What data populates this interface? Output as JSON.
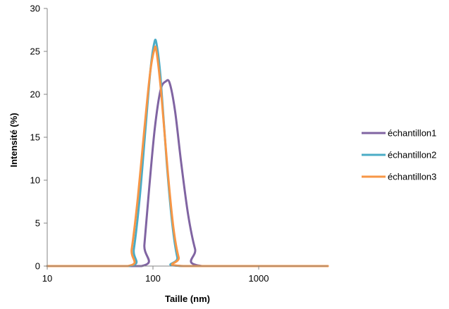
{
  "chart_data": {
    "type": "line",
    "title": "",
    "xlabel": "Taille (nm)",
    "ylabel": "Intensité (%)",
    "x_scale": "log",
    "xlim": [
      10,
      4500
    ],
    "ylim": [
      0,
      30
    ],
    "x_ticks": [
      10,
      100,
      1000
    ],
    "x_tick_labels": [
      "10",
      "100",
      "1000"
    ],
    "y_ticks": [
      0,
      5,
      10,
      15,
      20,
      25,
      30
    ],
    "y_tick_labels": [
      "0",
      "5",
      "10",
      "15",
      "20",
      "25",
      "30"
    ],
    "grid": false,
    "legend_position": "right",
    "series": [
      {
        "name": "échantillon1",
        "color": "#8064a2",
        "points": [
          [
            10,
            0
          ],
          [
            78,
            0
          ],
          [
            83,
            2.5
          ],
          [
            92,
            9
          ],
          [
            104,
            16
          ],
          [
            118,
            20.5
          ],
          [
            132,
            21.5
          ],
          [
            144,
            21.3
          ],
          [
            162,
            18
          ],
          [
            185,
            12
          ],
          [
            215,
            6
          ],
          [
            250,
            2
          ],
          [
            290,
            0
          ],
          [
            4500,
            0
          ]
        ]
      },
      {
        "name": "échantillon2",
        "color": "#4bacc6",
        "points": [
          [
            10,
            0
          ],
          [
            60,
            0
          ],
          [
            66,
            2
          ],
          [
            75,
            8
          ],
          [
            85,
            16
          ],
          [
            95,
            23
          ],
          [
            103,
            26
          ],
          [
            108,
            25.9
          ],
          [
            118,
            22
          ],
          [
            135,
            12
          ],
          [
            152,
            5
          ],
          [
            170,
            1
          ],
          [
            188,
            0
          ],
          [
            4500,
            0
          ]
        ]
      },
      {
        "name": "échantillon3",
        "color": "#f79646",
        "points": [
          [
            10,
            0
          ],
          [
            58,
            0
          ],
          [
            63,
            2
          ],
          [
            72,
            8
          ],
          [
            83,
            16
          ],
          [
            94,
            22.5
          ],
          [
            103,
            25.2
          ],
          [
            108,
            25
          ],
          [
            120,
            20
          ],
          [
            138,
            11
          ],
          [
            156,
            4.5
          ],
          [
            175,
            1
          ],
          [
            195,
            0
          ],
          [
            4500,
            0
          ]
        ]
      }
    ]
  }
}
